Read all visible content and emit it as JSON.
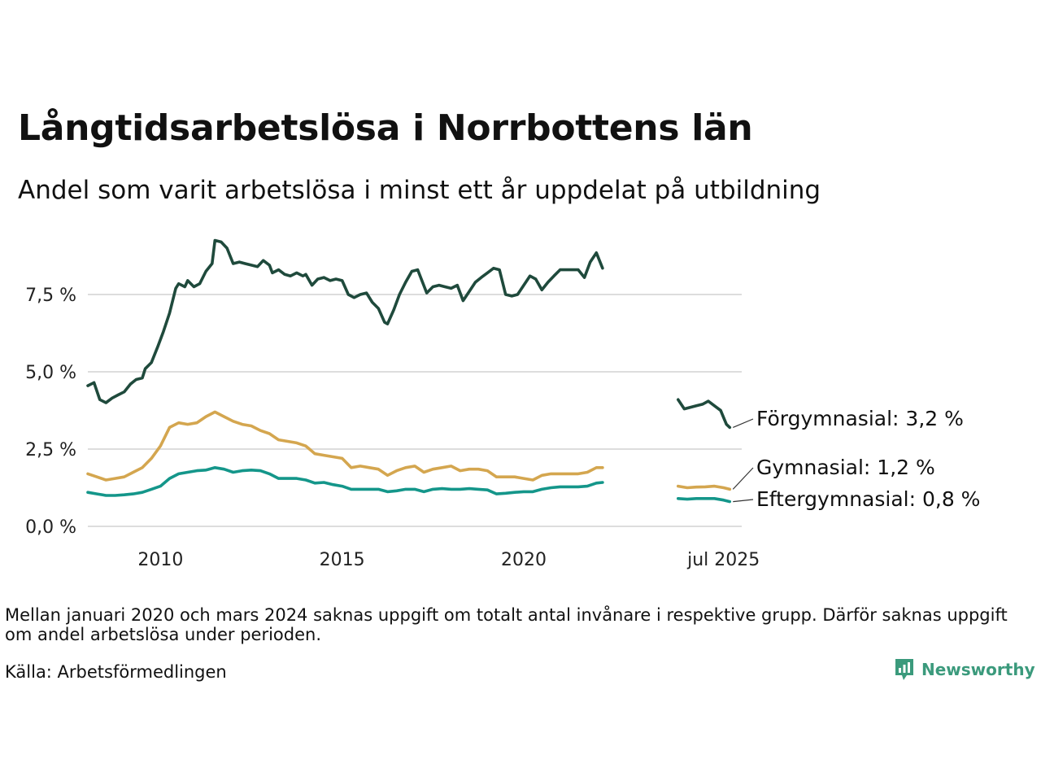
{
  "title": "Långtidsarbetslösa i Norrbottens län",
  "subtitle": "Andel som varit arbetslösa i minst ett år uppdelat på utbildning",
  "note": "Mellan januari 2020 och mars 2024 saknas uppgift om totalt antal invånare i respektive grupp. Därför saknas uppgift om andel arbetslösa under perioden.",
  "source": "Källa: Arbetsförmedlingen",
  "brand": "Newsworthy",
  "colors": {
    "forgymnasial": "#1f4a3c",
    "gymnasial": "#d4a64f",
    "eftergymnasial": "#14968a",
    "grid": "#dddddd",
    "brand": "#3b9a7c"
  },
  "chart_data": {
    "type": "line",
    "x_unit": "year",
    "xlim": [
      2008.0,
      2026.0
    ],
    "ylim": [
      0,
      9.5
    ],
    "x_ticks": [
      {
        "value": 2010,
        "label": "2010"
      },
      {
        "value": 2015,
        "label": "2015"
      },
      {
        "value": 2020,
        "label": "2020"
      },
      {
        "value": 2025.5,
        "label": "jul 2025"
      }
    ],
    "y_ticks": [
      {
        "value": 0,
        "label": "0,0 %"
      },
      {
        "value": 2.5,
        "label": "2,5 %"
      },
      {
        "value": 5,
        "label": "5,0 %"
      },
      {
        "value": 7.5,
        "label": "7,5 %"
      }
    ],
    "grid": "horizontal",
    "series": [
      {
        "name": "Förgymnasial",
        "end_label": "Förgymnasial: 3,2 %",
        "color_key": "forgymnasial",
        "segments": [
          [
            [
              2008.0,
              4.55
            ],
            [
              2008.17,
              4.65
            ],
            [
              2008.33,
              4.1
            ],
            [
              2008.5,
              4.0
            ],
            [
              2008.67,
              4.15
            ],
            [
              2008.83,
              4.25
            ],
            [
              2009.0,
              4.35
            ],
            [
              2009.17,
              4.6
            ],
            [
              2009.33,
              4.75
            ],
            [
              2009.5,
              4.8
            ],
            [
              2009.58,
              5.1
            ],
            [
              2009.75,
              5.3
            ],
            [
              2009.92,
              5.8
            ],
            [
              2010.08,
              6.3
            ],
            [
              2010.25,
              6.9
            ],
            [
              2010.42,
              7.7
            ],
            [
              2010.5,
              7.85
            ],
            [
              2010.67,
              7.75
            ],
            [
              2010.75,
              7.95
            ],
            [
              2010.92,
              7.75
            ],
            [
              2011.08,
              7.85
            ],
            [
              2011.25,
              8.25
            ],
            [
              2011.42,
              8.5
            ],
            [
              2011.5,
              9.25
            ],
            [
              2011.67,
              9.2
            ],
            [
              2011.83,
              9.0
            ],
            [
              2012.0,
              8.5
            ],
            [
              2012.17,
              8.55
            ],
            [
              2012.33,
              8.5
            ],
            [
              2012.5,
              8.45
            ],
            [
              2012.67,
              8.4
            ],
            [
              2012.83,
              8.6
            ],
            [
              2013.0,
              8.45
            ],
            [
              2013.08,
              8.2
            ],
            [
              2013.25,
              8.3
            ],
            [
              2013.42,
              8.15
            ],
            [
              2013.58,
              8.1
            ],
            [
              2013.75,
              8.2
            ],
            [
              2013.92,
              8.1
            ],
            [
              2014.0,
              8.15
            ],
            [
              2014.17,
              7.8
            ],
            [
              2014.33,
              8.0
            ],
            [
              2014.5,
              8.05
            ],
            [
              2014.67,
              7.95
            ],
            [
              2014.83,
              8.0
            ],
            [
              2015.0,
              7.95
            ],
            [
              2015.17,
              7.5
            ],
            [
              2015.33,
              7.4
            ],
            [
              2015.5,
              7.5
            ],
            [
              2015.67,
              7.55
            ],
            [
              2015.83,
              7.25
            ],
            [
              2016.0,
              7.05
            ],
            [
              2016.17,
              6.6
            ],
            [
              2016.25,
              6.55
            ],
            [
              2016.42,
              7.0
            ],
            [
              2016.58,
              7.5
            ],
            [
              2016.75,
              7.9
            ],
            [
              2016.92,
              8.25
            ],
            [
              2017.08,
              8.3
            ],
            [
              2017.33,
              7.55
            ],
            [
              2017.5,
              7.75
            ],
            [
              2017.67,
              7.8
            ],
            [
              2017.83,
              7.75
            ],
            [
              2018.0,
              7.7
            ],
            [
              2018.17,
              7.8
            ],
            [
              2018.33,
              7.3
            ],
            [
              2018.5,
              7.6
            ],
            [
              2018.67,
              7.9
            ],
            [
              2018.83,
              8.05
            ],
            [
              2019.0,
              8.2
            ],
            [
              2019.17,
              8.35
            ],
            [
              2019.33,
              8.3
            ],
            [
              2019.5,
              7.5
            ],
            [
              2019.67,
              7.45
            ],
            [
              2019.83,
              7.5
            ],
            [
              2020.0,
              7.8
            ],
            [
              2020.17,
              8.1
            ],
            [
              2020.33,
              8.0
            ],
            [
              2020.5,
              7.65
            ],
            [
              2020.67,
              7.9
            ],
            [
              2020.83,
              8.1
            ],
            [
              2021.0,
              8.3
            ],
            [
              2021.17,
              8.3
            ],
            [
              2021.33,
              8.3
            ],
            [
              2021.5,
              8.3
            ],
            [
              2021.67,
              8.05
            ],
            [
              2021.83,
              8.55
            ],
            [
              2022.0,
              8.85
            ],
            [
              2022.17,
              8.35
            ]
          ],
          [
            [
              2024.25,
              4.1
            ],
            [
              2024.42,
              3.8
            ],
            [
              2024.58,
              3.85
            ],
            [
              2024.75,
              3.9
            ],
            [
              2024.92,
              3.95
            ],
            [
              2025.08,
              4.05
            ],
            [
              2025.25,
              3.9
            ],
            [
              2025.42,
              3.75
            ],
            [
              2025.58,
              3.3
            ],
            [
              2025.67,
              3.2
            ]
          ]
        ]
      },
      {
        "name": "Gymnasial",
        "end_label": "Gymnasial: 1,2 %",
        "color_key": "gymnasial",
        "segments": [
          [
            [
              2008.0,
              1.7
            ],
            [
              2008.25,
              1.6
            ],
            [
              2008.5,
              1.5
            ],
            [
              2008.75,
              1.55
            ],
            [
              2009.0,
              1.6
            ],
            [
              2009.25,
              1.75
            ],
            [
              2009.5,
              1.9
            ],
            [
              2009.75,
              2.2
            ],
            [
              2010.0,
              2.6
            ],
            [
              2010.25,
              3.2
            ],
            [
              2010.5,
              3.35
            ],
            [
              2010.75,
              3.3
            ],
            [
              2011.0,
              3.35
            ],
            [
              2011.25,
              3.55
            ],
            [
              2011.5,
              3.7
            ],
            [
              2011.75,
              3.55
            ],
            [
              2012.0,
              3.4
            ],
            [
              2012.25,
              3.3
            ],
            [
              2012.5,
              3.25
            ],
            [
              2012.75,
              3.1
            ],
            [
              2013.0,
              3.0
            ],
            [
              2013.25,
              2.8
            ],
            [
              2013.5,
              2.75
            ],
            [
              2013.75,
              2.7
            ],
            [
              2014.0,
              2.6
            ],
            [
              2014.25,
              2.35
            ],
            [
              2014.5,
              2.3
            ],
            [
              2014.75,
              2.25
            ],
            [
              2015.0,
              2.2
            ],
            [
              2015.25,
              1.9
            ],
            [
              2015.5,
              1.95
            ],
            [
              2015.75,
              1.9
            ],
            [
              2016.0,
              1.85
            ],
            [
              2016.25,
              1.65
            ],
            [
              2016.5,
              1.8
            ],
            [
              2016.75,
              1.9
            ],
            [
              2017.0,
              1.95
            ],
            [
              2017.25,
              1.75
            ],
            [
              2017.5,
              1.85
            ],
            [
              2017.75,
              1.9
            ],
            [
              2018.0,
              1.95
            ],
            [
              2018.25,
              1.8
            ],
            [
              2018.5,
              1.85
            ],
            [
              2018.75,
              1.85
            ],
            [
              2019.0,
              1.8
            ],
            [
              2019.25,
              1.6
            ],
            [
              2019.5,
              1.6
            ],
            [
              2019.75,
              1.6
            ],
            [
              2020.0,
              1.55
            ],
            [
              2020.25,
              1.5
            ],
            [
              2020.5,
              1.65
            ],
            [
              2020.75,
              1.7
            ],
            [
              2021.0,
              1.7
            ],
            [
              2021.25,
              1.7
            ],
            [
              2021.5,
              1.7
            ],
            [
              2021.75,
              1.75
            ],
            [
              2022.0,
              1.9
            ],
            [
              2022.17,
              1.9
            ]
          ],
          [
            [
              2024.25,
              1.3
            ],
            [
              2024.5,
              1.25
            ],
            [
              2024.75,
              1.27
            ],
            [
              2025.0,
              1.28
            ],
            [
              2025.25,
              1.3
            ],
            [
              2025.5,
              1.25
            ],
            [
              2025.67,
              1.2
            ]
          ]
        ]
      },
      {
        "name": "Eftergymnasial",
        "end_label": "Eftergymnasial: 0,8 %",
        "color_key": "eftergymnasial",
        "segments": [
          [
            [
              2008.0,
              1.1
            ],
            [
              2008.25,
              1.05
            ],
            [
              2008.5,
              1.0
            ],
            [
              2008.75,
              1.0
            ],
            [
              2009.0,
              1.02
            ],
            [
              2009.25,
              1.05
            ],
            [
              2009.5,
              1.1
            ],
            [
              2009.75,
              1.2
            ],
            [
              2010.0,
              1.3
            ],
            [
              2010.25,
              1.55
            ],
            [
              2010.5,
              1.7
            ],
            [
              2010.75,
              1.75
            ],
            [
              2011.0,
              1.8
            ],
            [
              2011.25,
              1.82
            ],
            [
              2011.5,
              1.9
            ],
            [
              2011.75,
              1.85
            ],
            [
              2012.0,
              1.75
            ],
            [
              2012.25,
              1.8
            ],
            [
              2012.5,
              1.82
            ],
            [
              2012.75,
              1.8
            ],
            [
              2013.0,
              1.7
            ],
            [
              2013.25,
              1.55
            ],
            [
              2013.5,
              1.55
            ],
            [
              2013.75,
              1.55
            ],
            [
              2014.0,
              1.5
            ],
            [
              2014.25,
              1.4
            ],
            [
              2014.5,
              1.42
            ],
            [
              2014.75,
              1.35
            ],
            [
              2015.0,
              1.3
            ],
            [
              2015.25,
              1.2
            ],
            [
              2015.5,
              1.2
            ],
            [
              2015.75,
              1.2
            ],
            [
              2016.0,
              1.2
            ],
            [
              2016.25,
              1.12
            ],
            [
              2016.5,
              1.15
            ],
            [
              2016.75,
              1.2
            ],
            [
              2017.0,
              1.2
            ],
            [
              2017.25,
              1.12
            ],
            [
              2017.5,
              1.2
            ],
            [
              2017.75,
              1.22
            ],
            [
              2018.0,
              1.2
            ],
            [
              2018.25,
              1.2
            ],
            [
              2018.5,
              1.22
            ],
            [
              2018.75,
              1.2
            ],
            [
              2019.0,
              1.18
            ],
            [
              2019.25,
              1.05
            ],
            [
              2019.5,
              1.07
            ],
            [
              2019.75,
              1.1
            ],
            [
              2020.0,
              1.12
            ],
            [
              2020.25,
              1.12
            ],
            [
              2020.5,
              1.2
            ],
            [
              2020.75,
              1.25
            ],
            [
              2021.0,
              1.28
            ],
            [
              2021.25,
              1.28
            ],
            [
              2021.5,
              1.28
            ],
            [
              2021.75,
              1.3
            ],
            [
              2022.0,
              1.4
            ],
            [
              2022.17,
              1.42
            ]
          ],
          [
            [
              2024.25,
              0.9
            ],
            [
              2024.5,
              0.88
            ],
            [
              2024.75,
              0.9
            ],
            [
              2025.0,
              0.9
            ],
            [
              2025.25,
              0.9
            ],
            [
              2025.5,
              0.85
            ],
            [
              2025.67,
              0.8
            ]
          ]
        ]
      }
    ]
  }
}
